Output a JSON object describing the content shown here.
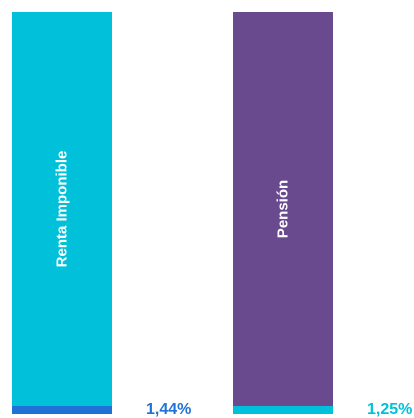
{
  "chart_data": {
    "type": "bar",
    "title": "",
    "xlabel": "",
    "ylabel": "",
    "categories": [
      "Renta Imponible",
      "Pensión"
    ],
    "values": [
      100,
      100
    ],
    "highlight_labels": [
      "1,44%",
      "1,25%"
    ],
    "highlight_values": [
      1.44,
      1.25
    ],
    "colors": {
      "bars": [
        "#00c1d9",
        "#6a4a8e"
      ],
      "highlights": [
        "#1f72d6",
        "#00c1d9"
      ],
      "labels": [
        "#1f72d6",
        "#00c1d9"
      ]
    }
  }
}
